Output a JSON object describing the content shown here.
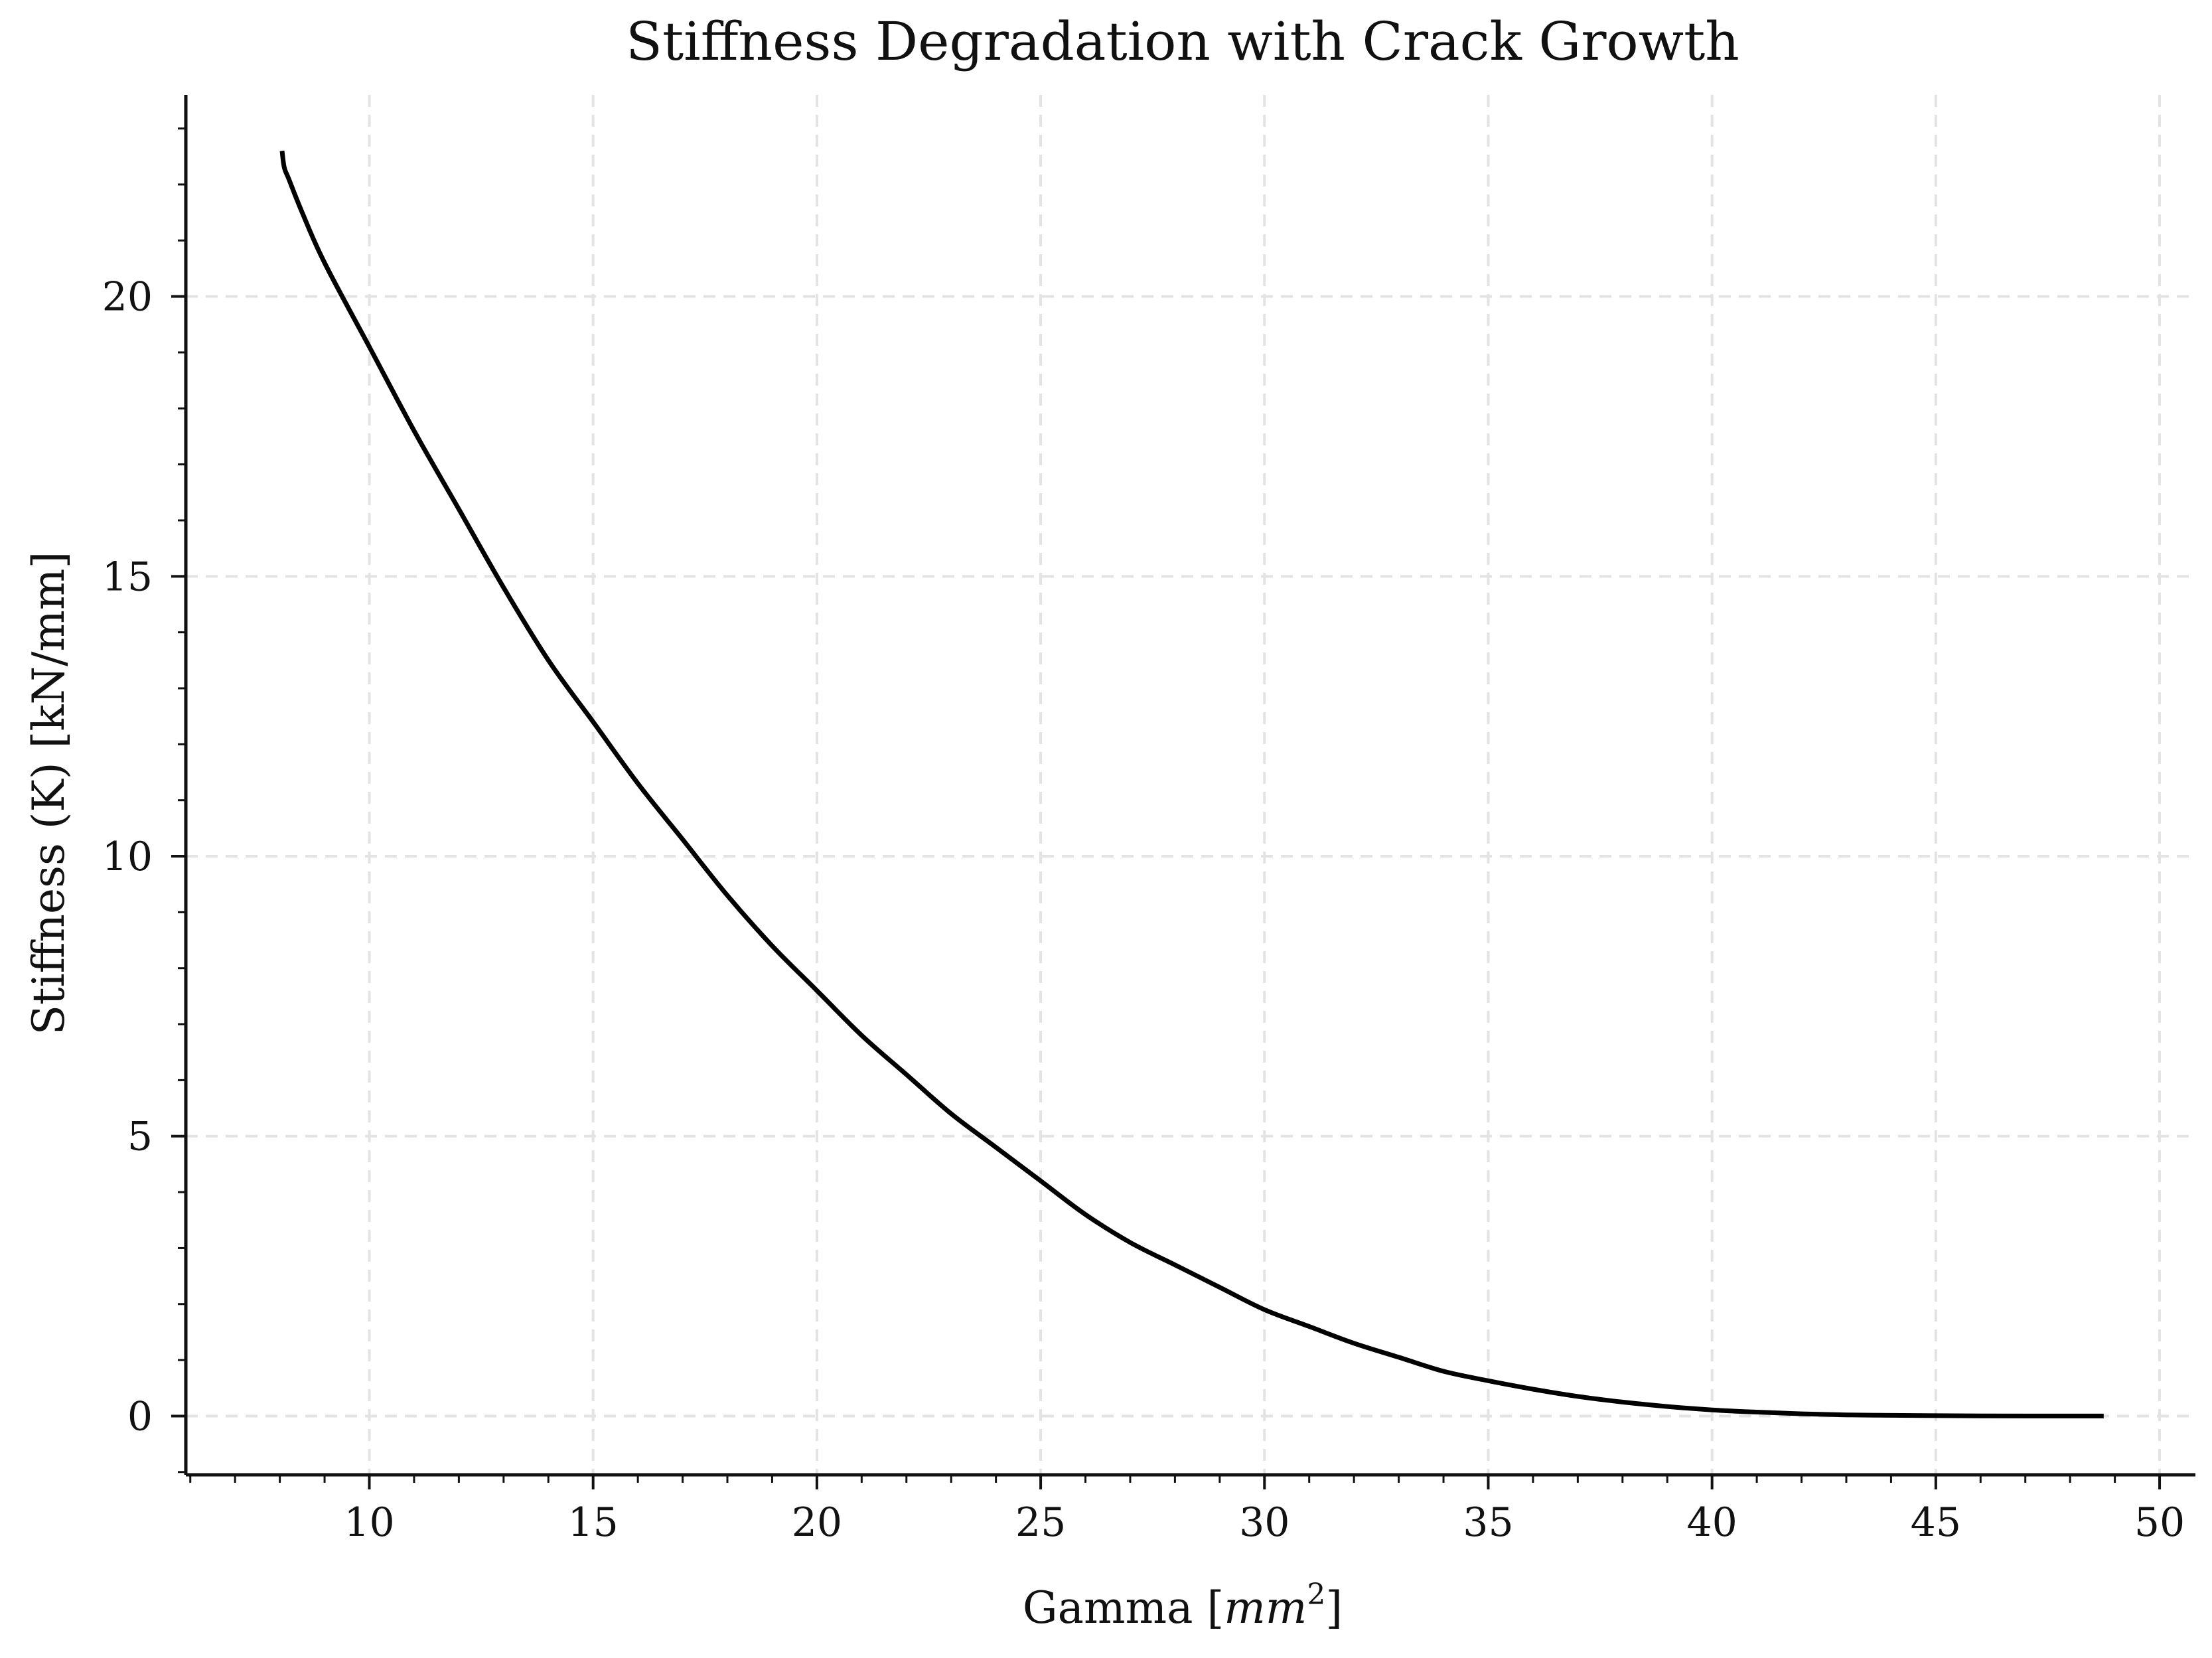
{
  "chart_data": {
    "type": "line",
    "title": "Stiffness Degradation with Crack Growth",
    "xlabel": "Gamma [",
    "xlabel_math": "mm",
    "xlabel_sup": "2",
    "xlabel_end": "]",
    "ylabel": "Stiffness (K) [kN/mm]",
    "xlim": [
      5.9,
      50.8
    ],
    "ylim": [
      -1.05,
      23.6
    ],
    "xticks": [
      10,
      15,
      20,
      25,
      30,
      35,
      40,
      45,
      50
    ],
    "yticks": [
      0,
      5,
      10,
      15,
      20
    ],
    "x_minor_step": 1,
    "y_minor_step": 1,
    "grid": true,
    "line_color": "#000000",
    "series": [
      {
        "x": [
          8.05,
          8.1,
          8.2,
          8.5,
          9,
          10,
          11,
          12,
          13,
          14,
          15,
          16,
          17,
          18,
          19,
          20,
          21,
          22,
          23,
          24,
          25,
          26,
          27,
          28,
          29,
          30,
          31,
          32,
          33,
          34,
          35,
          36,
          37,
          38,
          39,
          40,
          41,
          42,
          43,
          44,
          45,
          46,
          47,
          48,
          48.75
        ],
        "y": [
          22.6,
          22.3,
          22.1,
          21.5,
          20.6,
          19.1,
          17.6,
          16.2,
          14.8,
          13.5,
          12.4,
          11.3,
          10.3,
          9.3,
          8.4,
          7.6,
          6.8,
          6.1,
          5.4,
          4.8,
          4.2,
          3.6,
          3.1,
          2.7,
          2.3,
          1.9,
          1.6,
          1.3,
          1.05,
          0.8,
          0.63,
          0.48,
          0.35,
          0.25,
          0.17,
          0.11,
          0.07,
          0.04,
          0.02,
          0.012,
          0.006,
          0.003,
          0.001,
          0.0,
          0.0
        ]
      }
    ]
  }
}
